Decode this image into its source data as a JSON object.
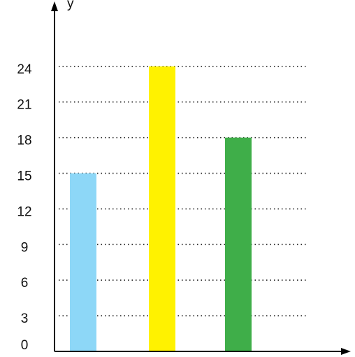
{
  "chart_data": {
    "type": "bar",
    "ylabel": "y",
    "categories": [
      null,
      null,
      null
    ],
    "values": [
      15,
      24,
      18
    ],
    "colors": [
      "#8dd7f7",
      "#fff200",
      "#3fae49"
    ],
    "ylim": [
      0,
      29
    ],
    "yticks": [
      0,
      3,
      6,
      9,
      12,
      15,
      18,
      21,
      24
    ],
    "grid": true
  }
}
